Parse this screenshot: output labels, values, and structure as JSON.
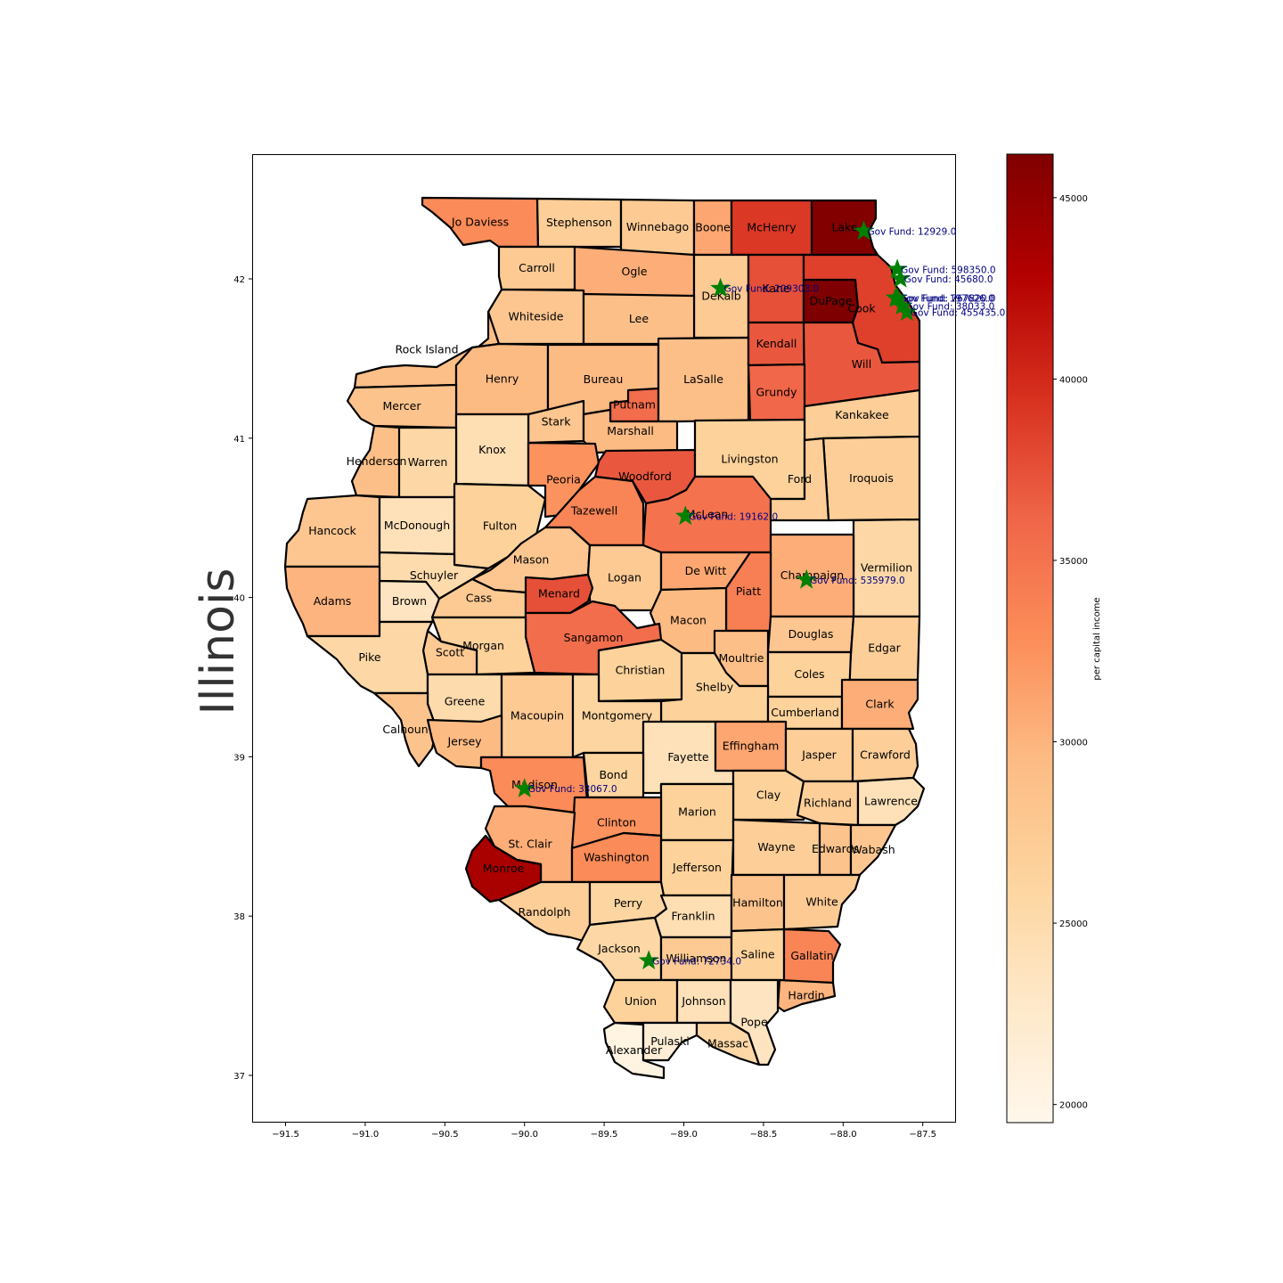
{
  "map": {
    "title": "Illinois",
    "x_ticks": [
      "−91.5",
      "−91.0",
      "−90.5",
      "−90.0",
      "−89.5",
      "−89.0",
      "−88.5",
      "−88.0",
      "−87.5"
    ],
    "y_ticks": [
      "42",
      "41",
      "40",
      "39",
      "38",
      "37"
    ],
    "colorbar": {
      "label": "per capital income",
      "ticks": [
        "45000",
        "40000",
        "35000",
        "30000",
        "25000",
        "20000"
      ],
      "range": [
        19500,
        46200
      ],
      "colormap": "OrRd"
    },
    "counties": [
      {
        "name": "Jo Daviess",
        "income": 33000
      },
      {
        "name": "Stephenson",
        "income": 27000
      },
      {
        "name": "Winnebago",
        "income": 27500
      },
      {
        "name": "Boone",
        "income": 31000
      },
      {
        "name": "McHenry",
        "income": 39000
      },
      {
        "name": "Lake",
        "income": 46000
      },
      {
        "name": "Carroll",
        "income": 27500
      },
      {
        "name": "Ogle",
        "income": 30500
      },
      {
        "name": "DeKalb",
        "income": 27500
      },
      {
        "name": "Kane",
        "income": 37500
      },
      {
        "name": "DuPage",
        "income": 46200
      },
      {
        "name": "Cook",
        "income": 38500
      },
      {
        "name": "Whiteside",
        "income": 28000
      },
      {
        "name": "Lee",
        "income": 29000
      },
      {
        "name": "Rock Island",
        "income": 29000
      },
      {
        "name": "Kendall",
        "income": 37000
      },
      {
        "name": "Will",
        "income": 37000
      },
      {
        "name": "Mercer",
        "income": 28500
      },
      {
        "name": "Henry",
        "income": 29500
      },
      {
        "name": "Bureau",
        "income": 29500
      },
      {
        "name": "Putnam",
        "income": 35500
      },
      {
        "name": "LaSalle",
        "income": 29000
      },
      {
        "name": "Grundy",
        "income": 36000
      },
      {
        "name": "Kankakee",
        "income": 27000
      },
      {
        "name": "Stark",
        "income": 28000
      },
      {
        "name": "Marshall",
        "income": 29500
      },
      {
        "name": "Knox",
        "income": 24500
      },
      {
        "name": "Henderson",
        "income": 29000
      },
      {
        "name": "Warren",
        "income": 25500
      },
      {
        "name": "Peoria",
        "income": 32500
      },
      {
        "name": "Woodford",
        "income": 37000
      },
      {
        "name": "Livingston",
        "income": 26500
      },
      {
        "name": "Iroquois",
        "income": 27000
      },
      {
        "name": "Hancock",
        "income": 28000
      },
      {
        "name": "McDonough",
        "income": 24000
      },
      {
        "name": "Fulton",
        "income": 26500
      },
      {
        "name": "Tazewell",
        "income": 33500
      },
      {
        "name": "McLean",
        "income": 35000
      },
      {
        "name": "Ford",
        "income": 27000
      },
      {
        "name": "Vermilion",
        "income": 25500
      },
      {
        "name": "Schuyler",
        "income": 25000
      },
      {
        "name": "Mason",
        "income": 28000
      },
      {
        "name": "Logan",
        "income": 27500
      },
      {
        "name": "De Witt",
        "income": 31000
      },
      {
        "name": "Champaign",
        "income": 30500
      },
      {
        "name": "Adams",
        "income": 30000
      },
      {
        "name": "Brown",
        "income": 23500
      },
      {
        "name": "Cass",
        "income": 27500
      },
      {
        "name": "Menard",
        "income": 37500
      },
      {
        "name": "Piatt",
        "income": 34000
      },
      {
        "name": "Macon",
        "income": 29500
      },
      {
        "name": "Sangamon",
        "income": 35500
      },
      {
        "name": "Morgan",
        "income": 26500
      },
      {
        "name": "Scott",
        "income": 27500
      },
      {
        "name": "Pike",
        "income": 25500
      },
      {
        "name": "Christian",
        "income": 26500
      },
      {
        "name": "Moultrie",
        "income": 29000
      },
      {
        "name": "Douglas",
        "income": 28000
      },
      {
        "name": "Edgar",
        "income": 27000
      },
      {
        "name": "Coles",
        "income": 26500
      },
      {
        "name": "Shelby",
        "income": 26500
      },
      {
        "name": "Greene",
        "income": 25000
      },
      {
        "name": "Macoupin",
        "income": 27500
      },
      {
        "name": "Montgomery",
        "income": 26000
      },
      {
        "name": "Cumberland",
        "income": 26500
      },
      {
        "name": "Clark",
        "income": 30500
      },
      {
        "name": "Calhoun",
        "income": 28500
      },
      {
        "name": "Jersey",
        "income": 29500
      },
      {
        "name": "Fayette",
        "income": 24000
      },
      {
        "name": "Effingham",
        "income": 31000
      },
      {
        "name": "Jasper",
        "income": 27000
      },
      {
        "name": "Crawford",
        "income": 27000
      },
      {
        "name": "Madison",
        "income": 33000
      },
      {
        "name": "Bond",
        "income": 26000
      },
      {
        "name": "Clay",
        "income": 26500
      },
      {
        "name": "Richland",
        "income": 27000
      },
      {
        "name": "Lawrence",
        "income": 24000
      },
      {
        "name": "Marion",
        "income": 26500
      },
      {
        "name": "Clinton",
        "income": 32500
      },
      {
        "name": "St. Clair",
        "income": 30500
      },
      {
        "name": "Washington",
        "income": 33000
      },
      {
        "name": "Wayne",
        "income": 27000
      },
      {
        "name": "Edwards",
        "income": 28500
      },
      {
        "name": "Wabash",
        "income": 28000
      },
      {
        "name": "Monroe",
        "income": 43500
      },
      {
        "name": "Jefferson",
        "income": 26500
      },
      {
        "name": "Randolph",
        "income": 27000
      },
      {
        "name": "Perry",
        "income": 26000
      },
      {
        "name": "Franklin",
        "income": 24500
      },
      {
        "name": "Hamilton",
        "income": 28500
      },
      {
        "name": "White",
        "income": 27500
      },
      {
        "name": "Jackson",
        "income": 25500
      },
      {
        "name": "Williamson",
        "income": 27500
      },
      {
        "name": "Saline",
        "income": 26500
      },
      {
        "name": "Gallatin",
        "income": 33500
      },
      {
        "name": "Hardin",
        "income": 30000
      },
      {
        "name": "Union",
        "income": 26500
      },
      {
        "name": "Johnson",
        "income": 24000
      },
      {
        "name": "Pope",
        "income": 23500
      },
      {
        "name": "Alexander",
        "income": 20500
      },
      {
        "name": "Pulaski",
        "income": 21500
      },
      {
        "name": "Massac",
        "income": 25500
      }
    ],
    "funds": [
      {
        "label": "Gov Fund: 12929.0",
        "lon": -87.87,
        "lat": 42.3
      },
      {
        "label": "Gov Fund: 598350.0",
        "lon": -87.66,
        "lat": 42.06
      },
      {
        "label": "Gov Fund: 45680.0",
        "lon": -87.64,
        "lat": 42.0
      },
      {
        "label": "Gov Fund: 197626.0",
        "lon": -87.67,
        "lat": 41.88
      },
      {
        "label": "Gov Fund: 767820.0",
        "lon": -87.66,
        "lat": 41.88
      },
      {
        "label": "Gov Fund: 38033.0",
        "lon": -87.63,
        "lat": 41.83
      },
      {
        "label": "Gov Fund: 455435.0",
        "lon": -87.6,
        "lat": 41.79
      },
      {
        "label": "Gov Fund: 209303.0",
        "lon": -88.77,
        "lat": 41.94
      },
      {
        "label": "Gov Fund: 19162.0",
        "lon": -88.99,
        "lat": 40.51
      },
      {
        "label": "Gov Fund: 535979.0",
        "lon": -88.23,
        "lat": 40.11
      },
      {
        "label": "Gov Fund: 33067.0",
        "lon": -90.0,
        "lat": 38.8
      },
      {
        "label": "Gov Fund: 72734.0",
        "lon": -89.22,
        "lat": 37.72
      }
    ]
  }
}
